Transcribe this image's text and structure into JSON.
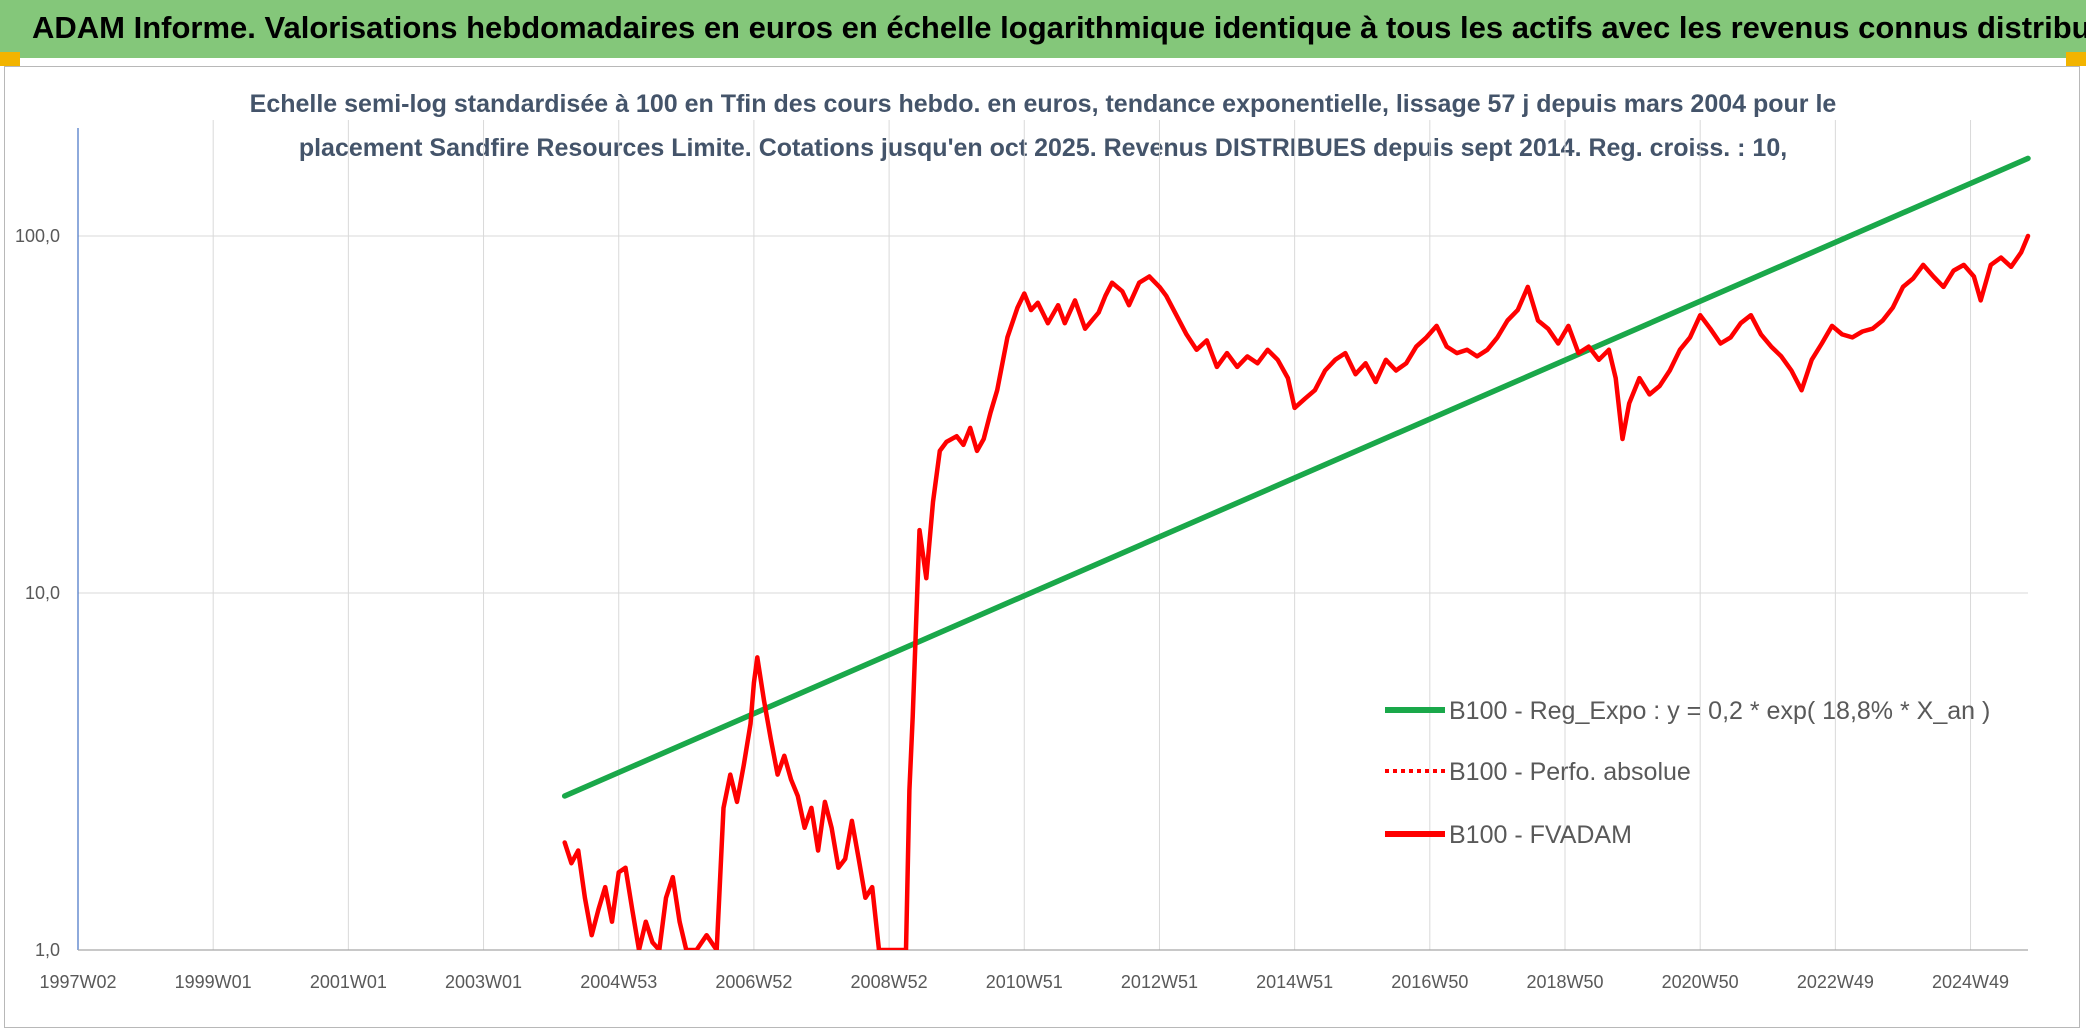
{
  "header": {
    "title": "ADAM Informe. Valorisations hebdomadaires en euros en échelle logarithmique identique à tous les actifs avec les revenus connus distribués"
  },
  "chart_data": {
    "type": "line",
    "title_line1": "Echelle semi-log standardisée à 100 en Tfin des cours hebdo. en euros, tendance exponentielle, lissage 57 j depuis mars 2004 pour le",
    "title_line2": "placement Sandfire Resources Limite. Cotations jusqu'en oct 2025. Revenus DISTRIBUES depuis sept 2014. Reg. croiss. : 10,",
    "y_scale": "log",
    "ylim": [
      1,
      180
    ],
    "y_ticks": [
      {
        "value": 1,
        "label": "1,0"
      },
      {
        "value": 10,
        "label": "10,0"
      },
      {
        "value": 100,
        "label": "100,0"
      }
    ],
    "xlim": [
      1997.0,
      2025.85
    ],
    "x_ticks": [
      {
        "value": 1997.0,
        "label": "1997W02"
      },
      {
        "value": 1999.0,
        "label": "1999W01"
      },
      {
        "value": 2001.0,
        "label": "2001W01"
      },
      {
        "value": 2003.0,
        "label": "2003W01"
      },
      {
        "value": 2005.0,
        "label": "2004W53"
      },
      {
        "value": 2007.0,
        "label": "2006W52"
      },
      {
        "value": 2009.0,
        "label": "2008W52"
      },
      {
        "value": 2011.0,
        "label": "2010W51"
      },
      {
        "value": 2013.0,
        "label": "2012W51"
      },
      {
        "value": 2015.0,
        "label": "2014W51"
      },
      {
        "value": 2017.0,
        "label": "2016W50"
      },
      {
        "value": 2019.0,
        "label": "2018W50"
      },
      {
        "value": 2021.0,
        "label": "2020W50"
      },
      {
        "value": 2023.0,
        "label": "2022W49"
      },
      {
        "value": 2025.0,
        "label": "2024W49"
      }
    ],
    "grid": true,
    "legend_position": "right",
    "series": [
      {
        "name": "B100 - Reg_Expo : y = 0,2 * exp( 18,8% *  X_an )",
        "color": "#1aa84a",
        "style": "solid",
        "points": [
          [
            2004.2,
            2.7
          ],
          [
            2025.85,
            165
          ]
        ]
      },
      {
        "name": "B100 - Perfo. absolue",
        "color": "#ff0000",
        "style": "dotted",
        "points": []
      },
      {
        "name": "B100 - FVADAM",
        "color": "#ff0000",
        "style": "solid",
        "points": [
          [
            2004.2,
            2.0
          ],
          [
            2004.3,
            1.75
          ],
          [
            2004.4,
            1.9
          ],
          [
            2004.5,
            1.4
          ],
          [
            2004.6,
            1.1
          ],
          [
            2004.7,
            1.3
          ],
          [
            2004.8,
            1.5
          ],
          [
            2004.9,
            1.2
          ],
          [
            2005.0,
            1.65
          ],
          [
            2005.1,
            1.7
          ],
          [
            2005.2,
            1.3
          ],
          [
            2005.3,
            1.0
          ],
          [
            2005.4,
            1.2
          ],
          [
            2005.5,
            1.05
          ],
          [
            2005.6,
            1.0
          ],
          [
            2005.7,
            1.4
          ],
          [
            2005.8,
            1.6
          ],
          [
            2005.9,
            1.2
          ],
          [
            2006.0,
            1.0
          ],
          [
            2006.15,
            1.0
          ],
          [
            2006.3,
            1.1
          ],
          [
            2006.45,
            1.0
          ],
          [
            2006.55,
            2.5
          ],
          [
            2006.65,
            3.1
          ],
          [
            2006.75,
            2.6
          ],
          [
            2006.85,
            3.3
          ],
          [
            2006.95,
            4.3
          ],
          [
            2007.0,
            5.6
          ],
          [
            2007.05,
            6.6
          ],
          [
            2007.15,
            5.0
          ],
          [
            2007.25,
            3.9
          ],
          [
            2007.35,
            3.1
          ],
          [
            2007.45,
            3.5
          ],
          [
            2007.55,
            3.0
          ],
          [
            2007.65,
            2.7
          ],
          [
            2007.75,
            2.2
          ],
          [
            2007.85,
            2.5
          ],
          [
            2007.95,
            1.9
          ],
          [
            2008.05,
            2.6
          ],
          [
            2008.15,
            2.2
          ],
          [
            2008.25,
            1.7
          ],
          [
            2008.35,
            1.8
          ],
          [
            2008.45,
            2.3
          ],
          [
            2008.55,
            1.8
          ],
          [
            2008.65,
            1.4
          ],
          [
            2008.75,
            1.5
          ],
          [
            2008.85,
            1.0
          ],
          [
            2009.25,
            1.0
          ],
          [
            2009.3,
            2.8
          ],
          [
            2009.35,
            4.5
          ],
          [
            2009.45,
            15.0
          ],
          [
            2009.55,
            11.0
          ],
          [
            2009.65,
            18.0
          ],
          [
            2009.75,
            25.0
          ],
          [
            2009.85,
            26.5
          ],
          [
            2010.0,
            27.5
          ],
          [
            2010.1,
            26.0
          ],
          [
            2010.2,
            29.0
          ],
          [
            2010.3,
            25.0
          ],
          [
            2010.4,
            27.0
          ],
          [
            2010.5,
            32.0
          ],
          [
            2010.6,
            37.0
          ],
          [
            2010.75,
            52.0
          ],
          [
            2010.9,
            63.0
          ],
          [
            2011.0,
            69.0
          ],
          [
            2011.1,
            62.0
          ],
          [
            2011.2,
            65.0
          ],
          [
            2011.35,
            57.0
          ],
          [
            2011.5,
            64.0
          ],
          [
            2011.6,
            57.0
          ],
          [
            2011.75,
            66.0
          ],
          [
            2011.9,
            55.0
          ],
          [
            2012.0,
            58.0
          ],
          [
            2012.1,
            61.0
          ],
          [
            2012.2,
            68.0
          ],
          [
            2012.3,
            74.0
          ],
          [
            2012.45,
            70.0
          ],
          [
            2012.55,
            64.0
          ],
          [
            2012.7,
            74.0
          ],
          [
            2012.85,
            77.0
          ],
          [
            2013.0,
            72.0
          ],
          [
            2013.1,
            68.0
          ],
          [
            2013.25,
            60.0
          ],
          [
            2013.4,
            53.0
          ],
          [
            2013.55,
            48.0
          ],
          [
            2013.7,
            51.0
          ],
          [
            2013.85,
            43.0
          ],
          [
            2014.0,
            47.0
          ],
          [
            2014.15,
            43.0
          ],
          [
            2014.3,
            46.0
          ],
          [
            2014.45,
            44.0
          ],
          [
            2014.6,
            48.0
          ],
          [
            2014.75,
            45.0
          ],
          [
            2014.9,
            40.0
          ],
          [
            2015.0,
            33.0
          ],
          [
            2015.15,
            35.0
          ],
          [
            2015.3,
            37.0
          ],
          [
            2015.45,
            42.0
          ],
          [
            2015.6,
            45.0
          ],
          [
            2015.75,
            47.0
          ],
          [
            2015.9,
            41.0
          ],
          [
            2016.05,
            44.0
          ],
          [
            2016.2,
            39.0
          ],
          [
            2016.35,
            45.0
          ],
          [
            2016.5,
            42.0
          ],
          [
            2016.65,
            44.0
          ],
          [
            2016.8,
            49.0
          ],
          [
            2016.95,
            52.0
          ],
          [
            2017.1,
            56.0
          ],
          [
            2017.25,
            49.0
          ],
          [
            2017.4,
            47.0
          ],
          [
            2017.55,
            48.0
          ],
          [
            2017.7,
            46.0
          ],
          [
            2017.85,
            48.0
          ],
          [
            2018.0,
            52.0
          ],
          [
            2018.15,
            58.0
          ],
          [
            2018.3,
            62.0
          ],
          [
            2018.45,
            72.0
          ],
          [
            2018.6,
            58.0
          ],
          [
            2018.75,
            55.0
          ],
          [
            2018.9,
            50.0
          ],
          [
            2019.05,
            56.0
          ],
          [
            2019.2,
            47.0
          ],
          [
            2019.35,
            49.0
          ],
          [
            2019.5,
            45.0
          ],
          [
            2019.65,
            48.0
          ],
          [
            2019.75,
            40.0
          ],
          [
            2019.85,
            27.0
          ],
          [
            2019.95,
            34.0
          ],
          [
            2020.1,
            40.0
          ],
          [
            2020.25,
            36.0
          ],
          [
            2020.4,
            38.0
          ],
          [
            2020.55,
            42.0
          ],
          [
            2020.7,
            48.0
          ],
          [
            2020.85,
            52.0
          ],
          [
            2021.0,
            60.0
          ],
          [
            2021.15,
            55.0
          ],
          [
            2021.3,
            50.0
          ],
          [
            2021.45,
            52.0
          ],
          [
            2021.6,
            57.0
          ],
          [
            2021.75,
            60.0
          ],
          [
            2021.9,
            53.0
          ],
          [
            2022.05,
            49.0
          ],
          [
            2022.2,
            46.0
          ],
          [
            2022.35,
            42.0
          ],
          [
            2022.5,
            37.0
          ],
          [
            2022.65,
            45.0
          ],
          [
            2022.8,
            50.0
          ],
          [
            2022.95,
            56.0
          ],
          [
            2023.1,
            53.0
          ],
          [
            2023.25,
            52.0
          ],
          [
            2023.4,
            54.0
          ],
          [
            2023.55,
            55.0
          ],
          [
            2023.7,
            58.0
          ],
          [
            2023.85,
            63.0
          ],
          [
            2024.0,
            72.0
          ],
          [
            2024.15,
            76.0
          ],
          [
            2024.3,
            83.0
          ],
          [
            2024.45,
            77.0
          ],
          [
            2024.6,
            72.0
          ],
          [
            2024.75,
            80.0
          ],
          [
            2024.9,
            83.0
          ],
          [
            2025.05,
            77.0
          ],
          [
            2025.15,
            66.0
          ],
          [
            2025.3,
            83.0
          ],
          [
            2025.45,
            87.0
          ],
          [
            2025.6,
            82.0
          ],
          [
            2025.75,
            90.0
          ],
          [
            2025.85,
            100.0
          ]
        ]
      }
    ]
  }
}
